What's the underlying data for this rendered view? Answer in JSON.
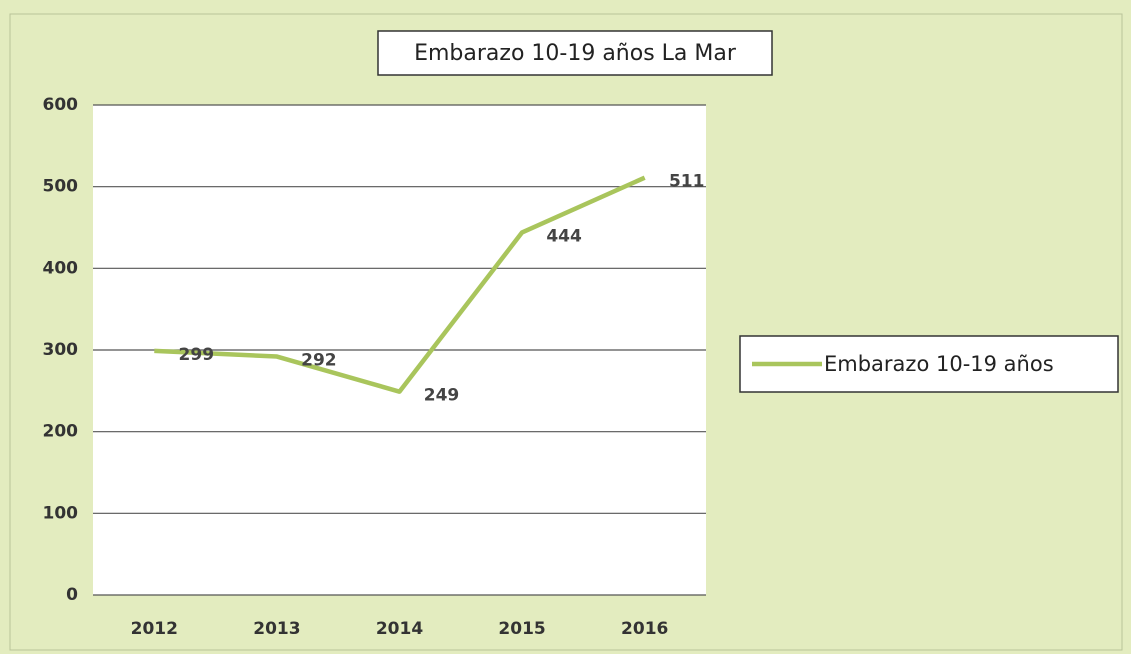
{
  "chart_data": {
    "type": "line",
    "title": "Embarazo 10-19 años La Mar",
    "categories": [
      "2012",
      "2013",
      "2014",
      "2015",
      "2016"
    ],
    "series": [
      {
        "name": "Embarazo 10-19 años",
        "color": "#a9c55c",
        "values": [
          299,
          292,
          249,
          444,
          511
        ]
      }
    ],
    "ylim": [
      0,
      600
    ],
    "yticks": [
      0,
      100,
      200,
      300,
      400,
      500,
      600
    ],
    "grid": true,
    "legend": "right"
  }
}
